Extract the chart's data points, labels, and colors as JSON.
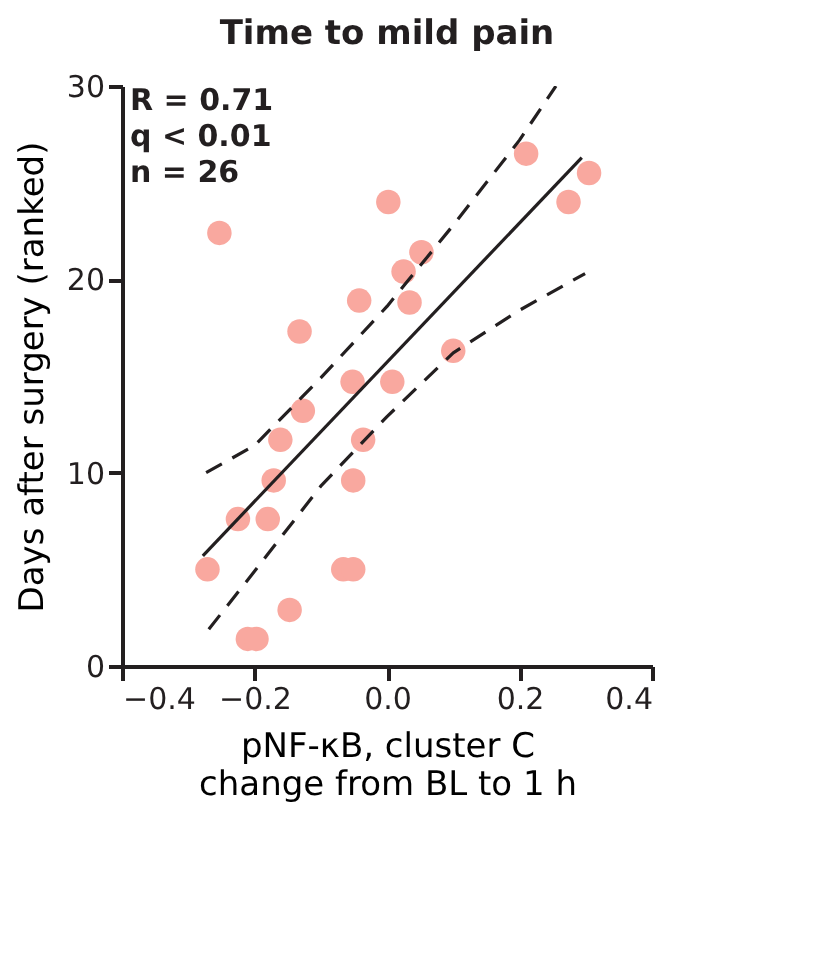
{
  "chart_data": {
    "type": "scatter",
    "title": "Time to mild pain",
    "xlabel": "pNF-κB, cluster C\nchange from BL to 1 h",
    "ylabel": "Days after surgery (ranked)",
    "xlim": [
      -0.4,
      0.4
    ],
    "xticks": [
      -0.4,
      -0.2,
      {
        "value": 0,
        "label": "0.0"
      },
      0.2,
      0.4
    ],
    "ylim": [
      0,
      30
    ],
    "yticks": [
      0,
      10,
      20,
      30
    ],
    "grid": false,
    "annotations": [
      "R = 0.71",
      "q < 0.01",
      "n = 26"
    ],
    "series": [
      {
        "marker": "circle",
        "color": "#f9a89f",
        "x": [
          -0.253,
          0.002,
          0.21,
          0.305,
          0.274,
          0.052,
          0.025,
          -0.042,
          0.034,
          -0.132,
          0.1,
          -0.052,
          0.008,
          -0.127,
          -0.161,
          -0.036,
          -0.171,
          -0.051,
          -0.225,
          -0.18,
          -0.271,
          -0.066,
          -0.051,
          -0.147,
          -0.21,
          -0.197
        ],
        "values": [
          22.4,
          24.0,
          26.5,
          25.5,
          24.0,
          21.4,
          20.4,
          18.9,
          18.8,
          17.3,
          16.3,
          14.7,
          14.7,
          13.2,
          11.7,
          11.7,
          9.6,
          9.6,
          7.6,
          7.6,
          5.0,
          5.0,
          5.0,
          2.9,
          1.4,
          1.4
        ]
      },
      {
        "type": "line",
        "color": "#231f20",
        "line_style": "solid",
        "x": [
          -0.278,
          0.294
        ],
        "values": [
          5.7,
          26.3
        ]
      },
      {
        "type": "line",
        "color": "#231f20",
        "line_style": "dashed",
        "x": [
          -0.273,
          -0.2,
          -0.1,
          0.0,
          0.1,
          0.2,
          0.255
        ],
        "values": [
          10.0,
          11.4,
          14.9,
          18.6,
          22.8,
          27.2,
          30.0
        ]
      },
      {
        "type": "line",
        "color": "#231f20",
        "line_style": "dashed",
        "x": [
          -0.269,
          -0.2,
          -0.1,
          0.0,
          0.1,
          0.2,
          0.299
        ],
        "values": [
          1.9,
          4.9,
          9.3,
          12.9,
          16.2,
          18.4,
          20.3
        ]
      }
    ]
  }
}
